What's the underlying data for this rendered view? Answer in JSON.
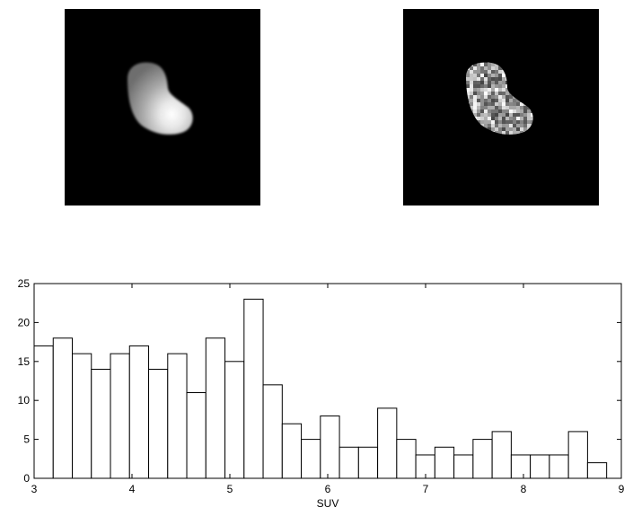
{
  "images": [
    {
      "name": "smooth-pet-uptake-image"
    },
    {
      "name": "voxel-noise-pet-image"
    }
  ],
  "chart_data": {
    "type": "bar",
    "title": "",
    "xlabel": "SUV",
    "ylabel": "",
    "xlim": [
      3,
      9
    ],
    "ylim": [
      0,
      25
    ],
    "xticks": [
      3,
      4,
      5,
      6,
      7,
      8,
      9
    ],
    "yticks": [
      0,
      5,
      10,
      15,
      20,
      25
    ],
    "grid": false,
    "bin_width": 0.195,
    "bin_starts": [
      3.0,
      3.195,
      3.39,
      3.585,
      3.78,
      3.975,
      4.17,
      4.365,
      4.56,
      4.755,
      4.95,
      5.145,
      5.34,
      5.535,
      5.73,
      5.925,
      6.12,
      6.315,
      6.51,
      6.705,
      6.9,
      7.095,
      7.29,
      7.485,
      7.68,
      7.875,
      8.07,
      8.265,
      8.46,
      8.655
    ],
    "values": [
      17,
      18,
      16,
      14,
      16,
      17,
      14,
      16,
      11,
      18,
      15,
      23,
      12,
      7,
      5,
      8,
      4,
      4,
      9,
      5,
      3,
      4,
      3,
      5,
      6,
      3,
      3,
      3,
      6,
      2
    ]
  }
}
